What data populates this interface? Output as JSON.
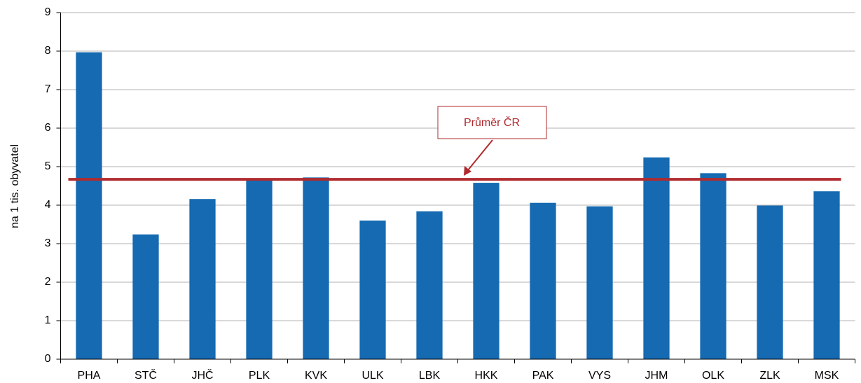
{
  "chart_data": {
    "type": "bar",
    "ylabel": "na 1 tis. obyvatel",
    "categories": [
      "PHA",
      "STČ",
      "JHČ",
      "PLK",
      "KVK",
      "ULK",
      "LBK",
      "HKK",
      "PAK",
      "VYS",
      "JHM",
      "OLK",
      "ZLK",
      "MSK"
    ],
    "values": [
      7.97,
      3.24,
      4.16,
      4.7,
      4.72,
      3.6,
      3.84,
      4.58,
      4.06,
      3.97,
      5.24,
      4.83,
      3.99,
      4.36
    ],
    "color": "#156ab1",
    "ylim": [
      0,
      9
    ],
    "yticks": [
      0,
      1,
      2,
      3,
      4,
      5,
      6,
      7,
      8,
      9
    ],
    "grid": true,
    "reference_line": {
      "value": 4.67,
      "label": "Průměr ČR",
      "color": "#b02a2e"
    }
  }
}
